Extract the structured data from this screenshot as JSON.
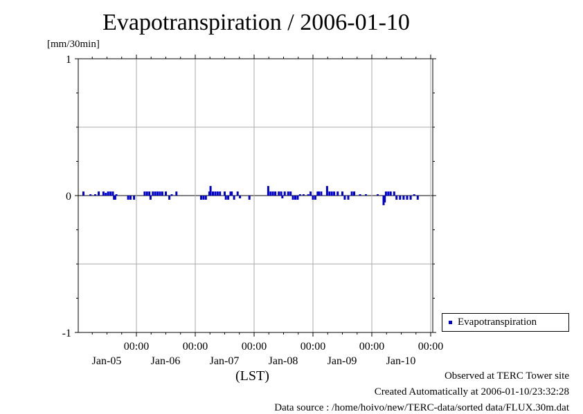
{
  "chart_data": {
    "type": "bar",
    "title": "Evapotranspiration / 2006-01-10",
    "ylabel": "[mm/30min]",
    "xlabel": "(LST)",
    "ylim": [
      -1,
      1
    ],
    "yticks": [
      "1",
      "0",
      "-1"
    ],
    "xticks": [
      {
        "time": "00:00",
        "date": "Jan-05"
      },
      {
        "time": "00:00",
        "date": "Jan-06"
      },
      {
        "time": "00:00",
        "date": "Jan-07"
      },
      {
        "time": "00:00",
        "date": "Jan-08"
      },
      {
        "time": "00:00",
        "date": "Jan-09"
      },
      {
        "time": "00:00",
        "date": "Jan-10"
      }
    ],
    "grid": true,
    "legend_position": "right-bottom",
    "series": [
      {
        "name": "Evapotranspiration",
        "color": "#0000cc",
        "day_start": "Jan-04 00:00",
        "step_hours": 0.5,
        "values": [
          0,
          0,
          0,
          0,
          0,
          0,
          0,
          0,
          0,
          0,
          0,
          0,
          0,
          0,
          0,
          0,
          0,
          0,
          0,
          0,
          0,
          0,
          0,
          0,
          0,
          0,
          0,
          0,
          0,
          0,
          0,
          0,
          0,
          0,
          0,
          0,
          0,
          0,
          0,
          0,
          0,
          0,
          0,
          0,
          0,
          0,
          0,
          0,
          0,
          0,
          0,
          0,
          0,
          0,
          0,
          0,
          0,
          0,
          0,
          0,
          0,
          0,
          0,
          0,
          0,
          0,
          0,
          0,
          0,
          0,
          0,
          0,
          0,
          0,
          0,
          0,
          0,
          0,
          0,
          0,
          0,
          0,
          0,
          0,
          0,
          0,
          0,
          0,
          0,
          0,
          0,
          0,
          0,
          0,
          0,
          0,
          0,
          0,
          0,
          0,
          0,
          0,
          0,
          0,
          0,
          0,
          0,
          0,
          0,
          0,
          0,
          0,
          0,
          0,
          0,
          0,
          0,
          0,
          0,
          0,
          0,
          0,
          0,
          0,
          0,
          0,
          0,
          0,
          0,
          0,
          0,
          0,
          0,
          0,
          0,
          0,
          0,
          0,
          0,
          0,
          0,
          0,
          0,
          0,
          0,
          0,
          0,
          0,
          0,
          0,
          0,
          0,
          0,
          0,
          0,
          0,
          0,
          0,
          0,
          0,
          0,
          0,
          0,
          0,
          0,
          0,
          0,
          0,
          0,
          0,
          0,
          0,
          0,
          0,
          0,
          0,
          0,
          0,
          0,
          0,
          0,
          0,
          0,
          0,
          0,
          0,
          0,
          0,
          0,
          0,
          0,
          0,
          0,
          0,
          0,
          0,
          0,
          0,
          0,
          0,
          0,
          0,
          0,
          0,
          0,
          0,
          0,
          0,
          0,
          0,
          0,
          0,
          0,
          0,
          0,
          0,
          0,
          0,
          0,
          0,
          0,
          0,
          0,
          0,
          0,
          0,
          0,
          0,
          0,
          0,
          0,
          0,
          0,
          0,
          0,
          0,
          0,
          0,
          0,
          0,
          0,
          0,
          0,
          0,
          0,
          0,
          0,
          0,
          0,
          0,
          0,
          0,
          0,
          0,
          0,
          0,
          0,
          0,
          0,
          0,
          0,
          0,
          0,
          0,
          0,
          0,
          0,
          0,
          0,
          0,
          0,
          0,
          0,
          0,
          0,
          0,
          0,
          0,
          0,
          0,
          0,
          0,
          0,
          0,
          0,
          0,
          0,
          0,
          0
        ]
      }
    ],
    "bars": [
      {
        "x": 0.1,
        "v": 0.03
      },
      {
        "x": 0.22,
        "v": 0.01
      },
      {
        "x": 0.3,
        "v": 0.01
      },
      {
        "x": 0.36,
        "v": 0.03
      },
      {
        "x": 0.44,
        "v": 0.03
      },
      {
        "x": 0.48,
        "v": 0.02
      },
      {
        "x": 0.52,
        "v": 0.03
      },
      {
        "x": 0.56,
        "v": 0.03
      },
      {
        "x": 0.6,
        "v": 0.03
      },
      {
        "x": 0.62,
        "v": -0.03
      },
      {
        "x": 0.64,
        "v": -0.03
      },
      {
        "x": 0.66,
        "v": 0.01
      },
      {
        "x": 0.86,
        "v": -0.03
      },
      {
        "x": 0.9,
        "v": -0.03
      },
      {
        "x": 0.96,
        "v": -0.03
      },
      {
        "x": 1.14,
        "v": 0.03
      },
      {
        "x": 1.18,
        "v": 0.03
      },
      {
        "x": 1.22,
        "v": 0.03
      },
      {
        "x": 1.24,
        "v": -0.03
      },
      {
        "x": 1.28,
        "v": 0.03
      },
      {
        "x": 1.32,
        "v": 0.03
      },
      {
        "x": 1.36,
        "v": 0.03
      },
      {
        "x": 1.4,
        "v": 0.03
      },
      {
        "x": 1.44,
        "v": 0.03
      },
      {
        "x": 1.5,
        "v": 0.03
      },
      {
        "x": 1.56,
        "v": -0.03
      },
      {
        "x": 1.6,
        "v": 0.01
      },
      {
        "x": 1.68,
        "v": 0.03
      },
      {
        "x": 2.1,
        "v": -0.03
      },
      {
        "x": 2.14,
        "v": -0.03
      },
      {
        "x": 2.18,
        "v": -0.03
      },
      {
        "x": 2.24,
        "v": 0.03
      },
      {
        "x": 2.26,
        "v": 0.07
      },
      {
        "x": 2.3,
        "v": 0.03
      },
      {
        "x": 2.34,
        "v": 0.03
      },
      {
        "x": 2.38,
        "v": 0.03
      },
      {
        "x": 2.42,
        "v": 0.03
      },
      {
        "x": 2.5,
        "v": 0.03
      },
      {
        "x": 2.52,
        "v": -0.03
      },
      {
        "x": 2.56,
        "v": -0.03
      },
      {
        "x": 2.6,
        "v": 0.03
      },
      {
        "x": 2.62,
        "v": 0.03
      },
      {
        "x": 2.66,
        "v": -0.03
      },
      {
        "x": 2.72,
        "v": 0.03
      },
      {
        "x": 2.76,
        "v": -0.02
      },
      {
        "x": 2.92,
        "v": -0.03
      },
      {
        "x": 3.24,
        "v": 0.07
      },
      {
        "x": 3.28,
        "v": 0.03
      },
      {
        "x": 3.32,
        "v": 0.03
      },
      {
        "x": 3.36,
        "v": 0.03
      },
      {
        "x": 3.42,
        "v": 0.03
      },
      {
        "x": 3.46,
        "v": 0.03
      },
      {
        "x": 3.48,
        "v": -0.02
      },
      {
        "x": 3.52,
        "v": 0.03
      },
      {
        "x": 3.58,
        "v": 0.03
      },
      {
        "x": 3.62,
        "v": 0.03
      },
      {
        "x": 3.66,
        "v": -0.03
      },
      {
        "x": 3.7,
        "v": -0.03
      },
      {
        "x": 3.74,
        "v": -0.03
      },
      {
        "x": 3.78,
        "v": 0.01
      },
      {
        "x": 3.84,
        "v": 0.01
      },
      {
        "x": 3.92,
        "v": 0.01
      },
      {
        "x": 3.96,
        "v": 0.03
      },
      {
        "x": 4.0,
        "v": -0.03
      },
      {
        "x": 4.04,
        "v": -0.03
      },
      {
        "x": 4.08,
        "v": 0.03
      },
      {
        "x": 4.1,
        "v": 0.03
      },
      {
        "x": 4.14,
        "v": 0.03
      },
      {
        "x": 4.24,
        "v": 0.07
      },
      {
        "x": 4.28,
        "v": 0.03
      },
      {
        "x": 4.32,
        "v": 0.03
      },
      {
        "x": 4.36,
        "v": 0.03
      },
      {
        "x": 4.42,
        "v": 0.03
      },
      {
        "x": 4.5,
        "v": 0.03
      },
      {
        "x": 4.54,
        "v": -0.03
      },
      {
        "x": 4.6,
        "v": -0.03
      },
      {
        "x": 4.66,
        "v": 0.03
      },
      {
        "x": 4.7,
        "v": 0.03
      },
      {
        "x": 4.8,
        "v": 0.01
      },
      {
        "x": 4.9,
        "v": 0.01
      },
      {
        "x": 5.1,
        "v": 0.01
      },
      {
        "x": 5.2,
        "v": -0.07
      },
      {
        "x": 5.22,
        "v": -0.05
      },
      {
        "x": 5.24,
        "v": 0.03
      },
      {
        "x": 5.28,
        "v": 0.03
      },
      {
        "x": 5.32,
        "v": 0.03
      },
      {
        "x": 5.38,
        "v": 0.03
      },
      {
        "x": 5.42,
        "v": -0.03
      },
      {
        "x": 5.48,
        "v": -0.03
      },
      {
        "x": 5.54,
        "v": -0.03
      },
      {
        "x": 5.6,
        "v": -0.03
      },
      {
        "x": 5.66,
        "v": -0.03
      },
      {
        "x": 5.72,
        "v": 0.01
      },
      {
        "x": 5.78,
        "v": -0.03
      }
    ]
  },
  "footer": {
    "line1": "Observed at TERC Tower site",
    "line2": "Created Automatically at 2006-01-10/23:32:28",
    "line3": "Data source : /home/hoivo/new/TERC-data/sorted  data/FLUX.30m.dat"
  }
}
